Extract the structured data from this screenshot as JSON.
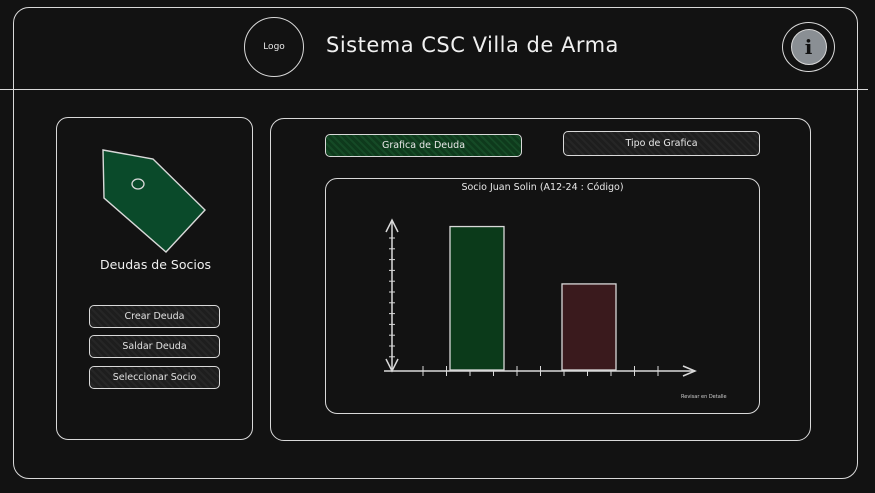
{
  "header": {
    "logo_text": "Logo",
    "title": "Sistema CSC Villa de Arma",
    "info_icon": "info-icon"
  },
  "sidebar": {
    "tag_icon": "tag-icon",
    "tag_color": "#0a4a2a",
    "title": "Deudas de Socios",
    "buttons": [
      "Crear Deuda",
      "Saldar Deuda",
      "Seleccionar Socio"
    ]
  },
  "main": {
    "tab_debt_label": "Grafica de Deuda",
    "chart_type_label": "Tipo de Grafica",
    "chart_title": "Socio Juan Solin (A12-24 : Código)",
    "detail_link": "Revisar en Detalle"
  },
  "chart_data": {
    "type": "bar",
    "title": "Socio Juan Solin (A12-24 : Código)",
    "xlabel": "",
    "ylabel": "",
    "categories": [
      "",
      ""
    ],
    "values": [
      9.5,
      5.7
    ],
    "colors": [
      "#0b3a1a",
      "#3a1a1d"
    ],
    "ylim": [
      0,
      10
    ],
    "grid": false
  }
}
